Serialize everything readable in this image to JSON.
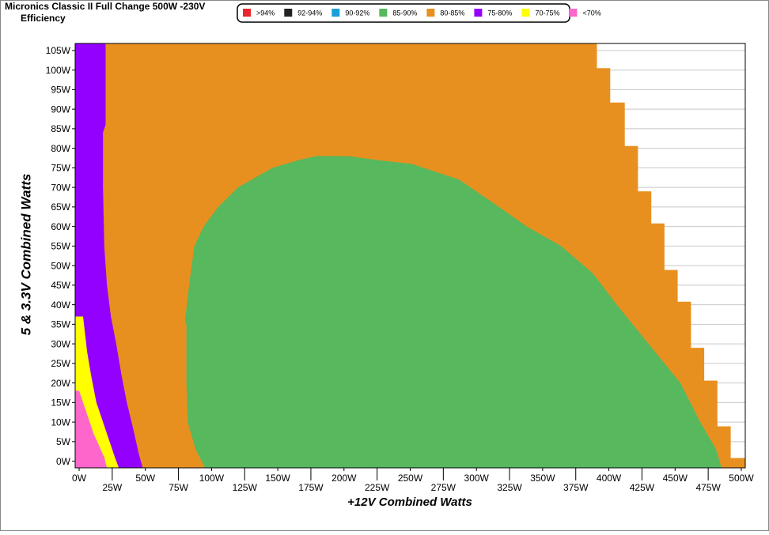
{
  "chart_data": {
    "type": "efficiency-map",
    "title": "Micronics Classic II Full Change 500W -230V",
    "subtitle": "Efficiency",
    "x_label": "+12V Combined Watts",
    "y_label": "5 & 3.3V Combined Watts",
    "xlim": [
      -3,
      503
    ],
    "ylim": [
      -1.7,
      106.8
    ],
    "grid": true,
    "legend": "top",
    "xticks": [
      {
        "value": 0,
        "label": "0W"
      },
      {
        "value": 25,
        "label": "25W"
      },
      {
        "value": 50,
        "label": "50W"
      },
      {
        "value": 75,
        "label": "75W"
      },
      {
        "value": 100,
        "label": "100W"
      },
      {
        "value": 125,
        "label": "125W"
      },
      {
        "value": 150,
        "label": "150W"
      },
      {
        "value": 175,
        "label": "175W"
      },
      {
        "value": 200,
        "label": "200W"
      },
      {
        "value": 225,
        "label": "225W"
      },
      {
        "value": 250,
        "label": "250W"
      },
      {
        "value": 275,
        "label": "275W"
      },
      {
        "value": 300,
        "label": "300W"
      },
      {
        "value": 325,
        "label": "325W"
      },
      {
        "value": 350,
        "label": "350W"
      },
      {
        "value": 375,
        "label": "375W"
      },
      {
        "value": 400,
        "label": "400W"
      },
      {
        "value": 425,
        "label": "425W"
      },
      {
        "value": 450,
        "label": "450W"
      },
      {
        "value": 475,
        "label": "475W"
      },
      {
        "value": 500,
        "label": "500W"
      }
    ],
    "yticks": [
      {
        "value": 0,
        "label": "0W"
      },
      {
        "value": 5,
        "label": "5W"
      },
      {
        "value": 10,
        "label": "10W"
      },
      {
        "value": 15,
        "label": "15W"
      },
      {
        "value": 20,
        "label": "20W"
      },
      {
        "value": 25,
        "label": "25W"
      },
      {
        "value": 30,
        "label": "30W"
      },
      {
        "value": 35,
        "label": "35W"
      },
      {
        "value": 40,
        "label": "40W"
      },
      {
        "value": 45,
        "label": "45W"
      },
      {
        "value": 50,
        "label": "50W"
      },
      {
        "value": 55,
        "label": "55W"
      },
      {
        "value": 60,
        "label": "60W"
      },
      {
        "value": 65,
        "label": "65W"
      },
      {
        "value": 70,
        "label": "70W"
      },
      {
        "value": 75,
        "label": "75W"
      },
      {
        "value": 80,
        "label": "80W"
      },
      {
        "value": 85,
        "label": "85W"
      },
      {
        "value": 90,
        "label": "90W"
      },
      {
        "value": 95,
        "label": "95W"
      },
      {
        "value": 100,
        "label": "100W"
      },
      {
        "value": 105,
        "label": "105W"
      }
    ],
    "series": [
      {
        "name": ">94%",
        "color": "#e8262b"
      },
      {
        "name": "92-94%",
        "color": "#222222"
      },
      {
        "name": "90-92%",
        "color": "#1a9fd9"
      },
      {
        "name": "85-90%",
        "color": "#57b85e",
        "x": [
          95,
          88,
          82,
          81,
          81,
          80,
          83,
          87,
          94,
          105,
          120,
          146,
          166,
          179,
          203,
          225,
          251,
          287,
          317,
          338,
          364,
          388,
          406,
          430,
          454,
          469,
          481,
          485
        ],
        "y": [
          -1.7,
          3,
          10,
          20,
          35,
          36,
          45,
          55,
          60,
          65,
          70,
          75,
          77,
          78,
          78,
          77,
          76,
          72,
          65,
          60,
          55,
          48,
          40,
          30,
          20,
          10,
          3,
          -1.7
        ]
      },
      {
        "name": "80-85%",
        "color": "#e8901f",
        "x": [
          -3,
          -3,
          391,
          391,
          401,
          401,
          412,
          412,
          422,
          422,
          432,
          432,
          442,
          442,
          452,
          452,
          462,
          462,
          472,
          472,
          482,
          482,
          492,
          492,
          503,
          503
        ],
        "y": [
          -1.7,
          106.8,
          106.8,
          100.5,
          100.5,
          91.7,
          91.7,
          80.6,
          80.6,
          69,
          69,
          60.8,
          60.8,
          48.9,
          48.9,
          40.8,
          40.8,
          29,
          29,
          20.6,
          20.6,
          8.9,
          8.9,
          0.8,
          0.8,
          -1.7
        ]
      },
      {
        "name": "75-80%",
        "color": "#9400ff",
        "x": [
          -3,
          -3,
          20,
          20,
          18,
          18,
          19,
          21,
          24,
          28,
          32,
          36,
          41,
          45,
          48
        ],
        "y": [
          -1.7,
          106.8,
          106.8,
          86,
          84,
          70,
          55,
          45,
          37,
          30,
          22,
          15,
          8,
          2,
          -1.7
        ]
      },
      {
        "name": "70-75%",
        "color": "#ffff00",
        "x": [
          -3,
          -3,
          3,
          6,
          9,
          13,
          18,
          23,
          27,
          30
        ],
        "y": [
          -1.7,
          37,
          37,
          28,
          22,
          15,
          10,
          5,
          1,
          -1.7
        ]
      },
      {
        "name": "<70%",
        "color": "#ff66cc",
        "x": [
          -3,
          -3,
          0,
          3,
          7,
          11,
          15,
          19,
          21
        ],
        "y": [
          -1.7,
          18,
          18,
          15,
          11,
          7,
          4,
          1,
          -1.7
        ]
      }
    ]
  }
}
